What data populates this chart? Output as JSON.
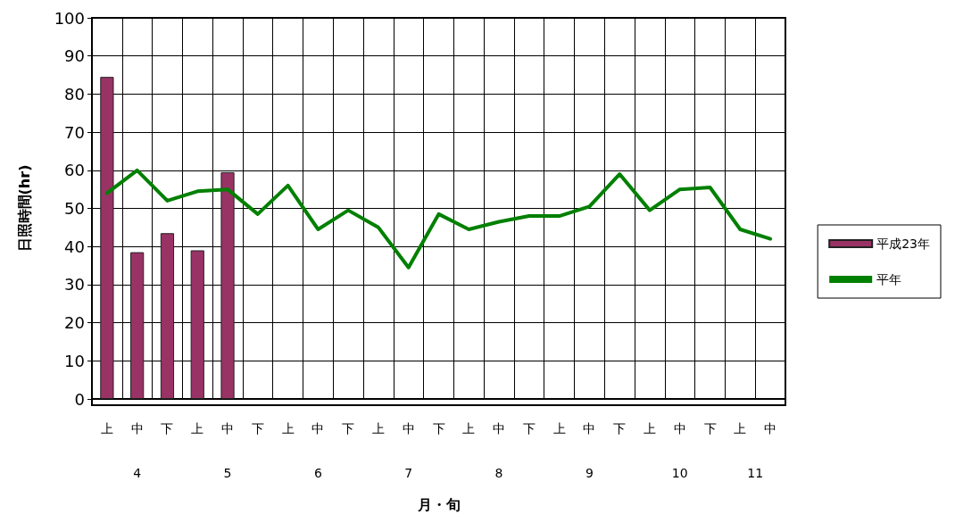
{
  "chart_data": {
    "type": "bar",
    "xlabel": "月・旬",
    "ylabel": "日照時間(hr)",
    "categories": [
      "上",
      "中",
      "下",
      "上",
      "中",
      "下",
      "上",
      "中",
      "下",
      "上",
      "中",
      "下",
      "上",
      "中",
      "下",
      "上",
      "中",
      "下",
      "上",
      "中",
      "下",
      "上",
      "中"
    ],
    "annotations": [
      "4",
      "5",
      "6",
      "7",
      "8",
      "9",
      "10",
      "11"
    ],
    "series": [
      {
        "name": "平成23年",
        "color": "#993366",
        "values": [
          84.5,
          38.5,
          43.5,
          39,
          59.5,
          null,
          null,
          null,
          null,
          null,
          null,
          null,
          null,
          null,
          null,
          null,
          null,
          null,
          null,
          null,
          null,
          null,
          null
        ]
      },
      {
        "name": "平年",
        "type": "line",
        "color": "#008000",
        "values": [
          54,
          60,
          52,
          54.5,
          55,
          48.5,
          56,
          44.5,
          49.5,
          45,
          34.5,
          48.5,
          44.5,
          46.5,
          48,
          48,
          50.5,
          59,
          49.5,
          55,
          55.5,
          44.5,
          42
        ]
      }
    ],
    "ylim": [
      0,
      100
    ],
    "yticks": [
      0,
      10,
      20,
      30,
      40,
      50,
      60,
      70,
      80,
      90,
      100
    ],
    "grid": true,
    "legend": "right",
    "marker": "none",
    "line_style": "solid"
  }
}
